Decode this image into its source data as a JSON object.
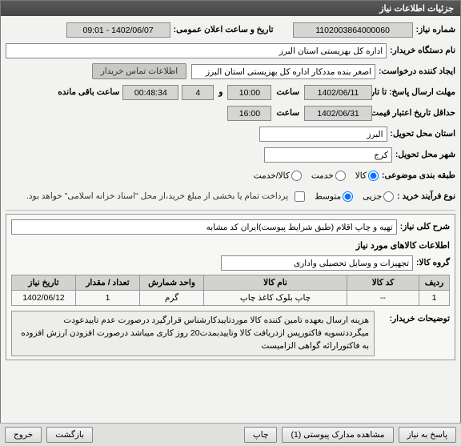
{
  "window": {
    "title": "جزئیات اطلاعات نیاز"
  },
  "header": {
    "need_no_label": "شماره نیاز:",
    "need_no": "1102003864000060",
    "announce_label": "تاریخ و ساعت اعلان عمومی:",
    "announce_date": "1402/06/07 - 09:01",
    "buyer_org_label": "نام دستگاه خریدار:",
    "buyer_org": "اداره کل بهزیستی استان البرز",
    "requester_label": "ایجاد کننده درخواست:",
    "requester": "اصغر بنده مددکار اداره کل بهزیستی استان البرز",
    "contact_btn": "اطلاعات تماس خریدار",
    "deadline_label": "مهلت ارسال پاسخ: تا تاریخ:",
    "deadline_date": "1402/06/11",
    "saat": "ساعت",
    "deadline_time": "10:00",
    "va": "و",
    "deadline_days": "4",
    "remaining_label": "ساعت باقی مانده",
    "remaining_time": "00:48:34",
    "validity_label": "حداقل تاریخ اعتبار قیمت: تا تاریخ:",
    "validity_date": "1402/06/31",
    "validity_time": "16:00",
    "province_label": "استان محل تحویل:",
    "province": "البرز",
    "city_label": "شهر محل تحویل:",
    "city": "کرج",
    "group_label": "طبقه بندی موضوعی:",
    "group_goods": "کالا",
    "group_service": "خدمت",
    "group_mixed": "کالا/خدمت",
    "buy_type_label": "نوع فرآیند خرید :",
    "buy_part": "جزیی",
    "buy_mid": "متوسط",
    "buy_note": "پرداخت تمام یا بخشی از مبلغ خرید،از محل \"اسناد خزانه اسلامی\" خواهد بود."
  },
  "summary": {
    "title_label": "شرح کلی نیاز:",
    "title": "تهیه و چاپ اقلام (طبق شرایط پیوست)ایران کد مشابه",
    "items_section": "اطلاعات کالاهای مورد نیاز",
    "group_label": "گروه کالا:",
    "group": "تجهیزات و وسایل تحصیلی واداری"
  },
  "table": {
    "cols": [
      "ردیف",
      "کد کالا",
      "نام کالا",
      "واحد شمارش",
      "تعداد / مقدار",
      "تاریخ نیاز"
    ],
    "rows": [
      [
        "1",
        "--",
        "چاپ بلوک کاغذ چاپ",
        "گرم",
        "1",
        "1402/06/12"
      ]
    ]
  },
  "buyer_note": {
    "label": "توضیحات خریدار:",
    "text": "هزینه ارسال بعهده تامین کننده کالا موردتاییدکارشناس قرارگیرد درصورت عدم تاییدعودت میگرددتسویه فاکتورپس ازدریافت کالا وتاییدبمدت20 روز کاری میباشد درصورت افزودن ارزش افزوده به فاکتورارائه گواهی الزامیست"
  },
  "footer": {
    "respond": "پاسخ به نیاز",
    "attachments": "مشاهده مدارک پیوستی (1)",
    "print": "چاپ",
    "back": "بازگشت",
    "exit": "خروج"
  },
  "styles": {
    "titlebar_bg": "#4c4c4c",
    "field_bg": "#ffffff",
    "darkfield_bg": "#d5d5d3",
    "border": "#888888"
  }
}
